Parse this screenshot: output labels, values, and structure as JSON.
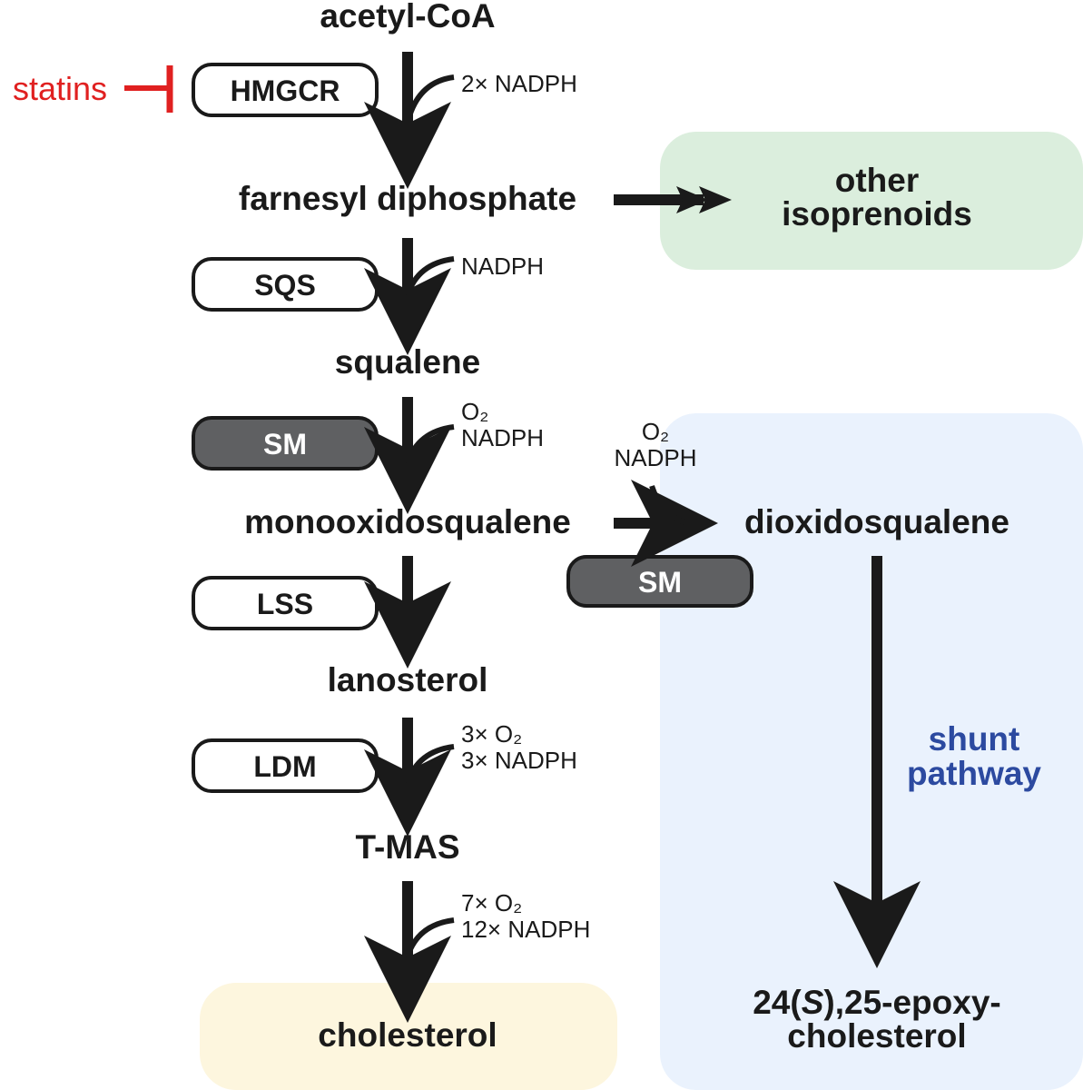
{
  "metabolites": {
    "acetyl_coa": "acetyl-CoA",
    "farnesyl_diphosphate": "farnesyl diphosphate",
    "other_isoprenoids": [
      "other",
      "isoprenoids"
    ],
    "squalene": "squalene",
    "monooxidosqualene": "monooxidosqualene",
    "dioxidosqualene": "dioxidosqualene",
    "lanosterol": "lanosterol",
    "t_mas": "T-MAS",
    "cholesterol": "cholesterol",
    "epoxycholesterol": {
      "line1_prefix": "24(",
      "line1_italic": "S",
      "line1_suffix": "),25-epoxy-",
      "line2": "cholesterol"
    }
  },
  "enzymes": {
    "hmgcr": "HMGCR",
    "sqs": "SQS",
    "sm_main": "SM",
    "sm_shunt": "SM",
    "lss": "LSS",
    "ldm": "LDM"
  },
  "cofactors": {
    "step1": [
      "2× NADPH"
    ],
    "step2": [
      "NADPH"
    ],
    "step3": [
      "O₂",
      "NADPH"
    ],
    "shunt": [
      "O₂",
      "NADPH"
    ],
    "step5": [
      "3× O₂",
      "3× NADPH"
    ],
    "step6": [
      "7× O₂",
      "12× NADPH"
    ]
  },
  "inhibitor": "statins",
  "shunt_label": [
    "shunt",
    "pathway"
  ],
  "colors": {
    "text": "#1a1a1a",
    "statins_red": "#e02020",
    "sm_fill": "#5f6062",
    "other_isoprenoids_bg": "#dbeedd",
    "shunt_bg": "#eaf2fd",
    "cholesterol_bg": "#fdf6de",
    "shunt_label_blue": "#2c4aa0"
  }
}
